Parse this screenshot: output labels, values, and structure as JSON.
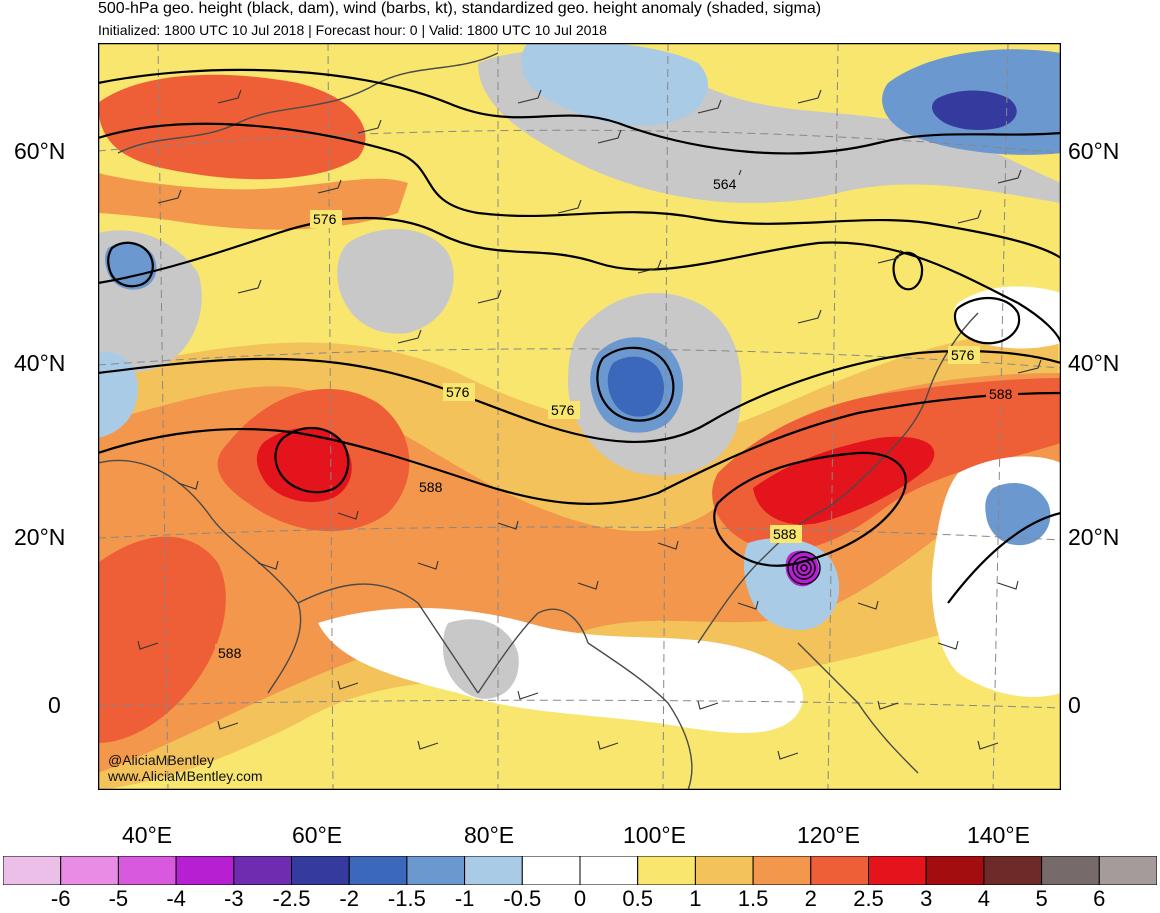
{
  "header": {
    "title": "500-hPa geo. height (black, dam), wind (barbs, kt), standardized geo. height anomaly (shaded, sigma)",
    "subtitle": "Initialized: 1800 UTC 10 Jul 2018 | Forecast hour: 0 | Valid: 1800 UTC 10 Jul 2018"
  },
  "map": {
    "lat_labels": [
      "60°N",
      "40°N",
      "20°N",
      "0"
    ],
    "lon_labels": [
      "40°E",
      "60°E",
      "80°E",
      "100°E",
      "120°E",
      "140°E"
    ],
    "contour_labels": [
      "564",
      "576",
      "576",
      "576",
      "576",
      "588",
      "588",
      "588",
      "588"
    ],
    "credits": [
      "@AliciaMBentley",
      "www.AliciaMBentley.com"
    ]
  },
  "colorbar": {
    "labels": [
      "-6",
      "-5",
      "-4",
      "-3",
      "-2.5",
      "-2",
      "-1.5",
      "-1",
      "-0.5",
      "0",
      "0.5",
      "1",
      "1.5",
      "2",
      "2.5",
      "3",
      "4",
      "5",
      "6"
    ],
    "colors": [
      "#ecbfe8",
      "#e98ce6",
      "#d859de",
      "#b71fd2",
      "#6e2cb0",
      "#353a9f",
      "#3c68bb",
      "#6b98cf",
      "#a9cbe6",
      "#ffffff",
      "#ffffff",
      "#f8e66e",
      "#f4c25a",
      "#f2974b",
      "#ee5f38",
      "#e3141b",
      "#a40d10",
      "#6e2a29",
      "#766b6a",
      "#a69b9b"
    ]
  },
  "colors": {
    "land_outline": "#4a4a4a",
    "contour": "#000000",
    "grid": "#888888"
  }
}
